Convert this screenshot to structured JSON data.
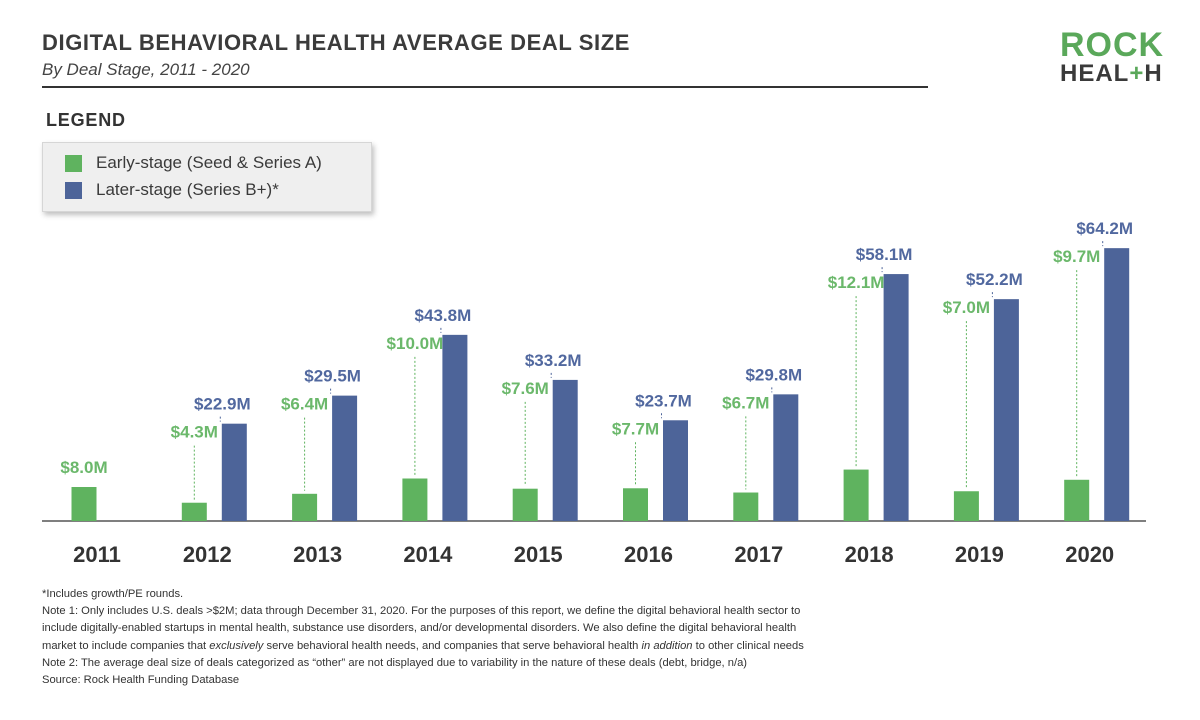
{
  "header": {
    "title": "DIGITAL BEHAVIORAL HEALTH AVERAGE DEAL SIZE",
    "subtitle": "By Deal Stage, 2011 - 2020"
  },
  "logo": {
    "line1": "ROCK",
    "line2_a": "HEAL",
    "line2_plus": "+",
    "line2_b": "H"
  },
  "legend": {
    "title": "LEGEND",
    "early_label": "Early-stage (Seed & Series A)",
    "later_label": "Later-stage (Series B+)*"
  },
  "colors": {
    "early": "#5fb35f",
    "later": "#4d6499",
    "label_early": "#6bb86b",
    "label_later": "#51689f"
  },
  "chart_data": {
    "type": "bar",
    "categories": [
      "2011",
      "2012",
      "2013",
      "2014",
      "2015",
      "2016",
      "2017",
      "2018",
      "2019",
      "2020"
    ],
    "series": [
      {
        "name": "Early-stage (Seed & Series A)",
        "values": [
          8.0,
          4.3,
          6.4,
          10.0,
          7.6,
          7.7,
          6.7,
          12.1,
          7.0,
          9.7
        ],
        "labels": [
          "$8.0M",
          "$4.3M",
          "$6.4M",
          "$10.0M",
          "$7.6M",
          "$7.7M",
          "$6.7M",
          "$12.1M",
          "$7.0M",
          "$9.7M"
        ]
      },
      {
        "name": "Later-stage (Series B+)*",
        "values": [
          null,
          22.9,
          29.5,
          43.8,
          33.2,
          23.7,
          29.8,
          58.1,
          52.2,
          64.2
        ],
        "labels": [
          "",
          "$22.9M",
          "$29.5M",
          "$43.8M",
          "$33.2M",
          "$23.7M",
          "$29.8M",
          "$58.1M",
          "$52.2M",
          "$64.2M"
        ]
      }
    ],
    "ylim": [
      0,
      70
    ],
    "grid": false,
    "legend_position": "top-left"
  },
  "footnotes": {
    "n0": "*Includes growth/PE rounds.",
    "n1": "Note 1: Only includes U.S. deals >$2M; data through December 31, 2020. For the purposes of this report, we define the digital behavioral health sector to",
    "n2": "include digitally-enabled startups in mental health, substance use disorders, and/or developmental disorders. We also define the digital behavioral health",
    "n3a": "market to include companies that ",
    "n3b": "exclusively",
    "n3c": " serve behavioral health needs, and companies that serve behavioral health ",
    "n3d": "in addition",
    "n3e": " to other clinical needs",
    "n4": "Note 2: The average deal size of deals categorized as “other” are not displayed due to variability in the nature of these deals (debt, bridge, n/a)",
    "n5": "Source: Rock Health Funding Database"
  }
}
